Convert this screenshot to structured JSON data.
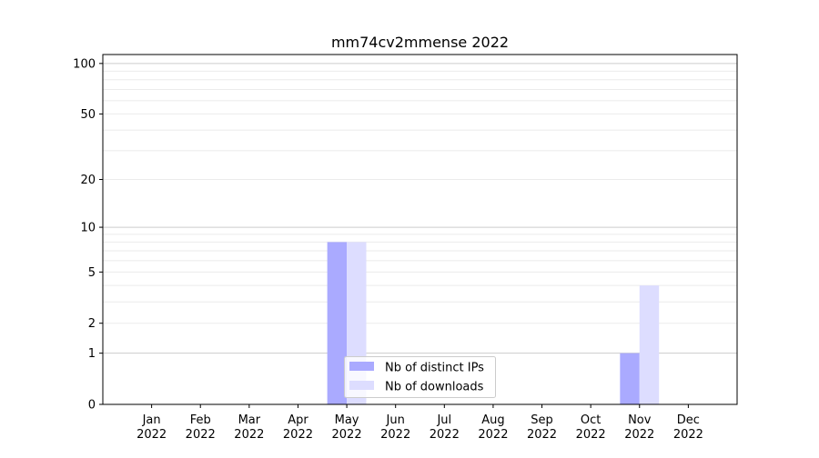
{
  "chart_data": {
    "type": "bar",
    "title": "mm74cv2mmense 2022",
    "xlabel": "",
    "ylabel": "",
    "categories": [
      "Jan\n2022",
      "Feb\n2022",
      "Mar\n2022",
      "Apr\n2022",
      "May\n2022",
      "Jun\n2022",
      "Jul\n2022",
      "Aug\n2022",
      "Sep\n2022",
      "Oct\n2022",
      "Nov\n2022",
      "Dec\n2022"
    ],
    "y_scale": "log(1+y)",
    "ylim": [
      0,
      113
    ],
    "y_ticks": [
      0,
      1,
      2,
      5,
      10,
      20,
      50,
      100
    ],
    "grid": true,
    "legend_position": "bottom-center",
    "series": [
      {
        "name": "Nb of distinct IPs",
        "color": "#aaaaff",
        "values": [
          0,
          0,
          0,
          0,
          8,
          0,
          0,
          0,
          0,
          0,
          1,
          0
        ]
      },
      {
        "name": "Nb of downloads",
        "color": "#ddddff",
        "values": [
          0,
          0,
          0,
          0,
          8,
          0,
          0,
          0,
          0,
          0,
          4,
          0
        ]
      }
    ]
  }
}
